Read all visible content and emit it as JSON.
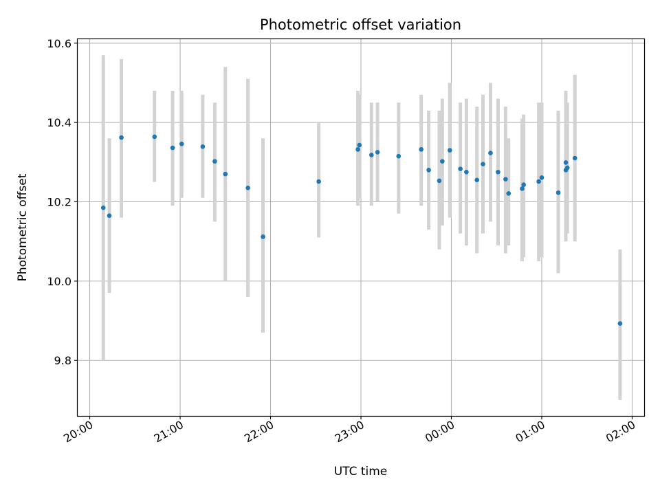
{
  "chart_data": {
    "type": "scatter",
    "title": "Photometric offset variation",
    "xlabel": "UTC time",
    "ylabel": "Photometric offset",
    "x_ticks": [
      "20:00",
      "21:00",
      "22:00",
      "23:00",
      "00:00",
      "01:00",
      "02:00"
    ],
    "y_ticks": [
      "9.8",
      "10.0",
      "10.2",
      "10.4",
      "10.6"
    ],
    "y_tick_values": [
      9.8,
      10.0,
      10.2,
      10.4,
      10.6
    ],
    "xlim": [
      "20:00",
      "02:00"
    ],
    "ylim": [
      9.66,
      10.61
    ],
    "grid": true,
    "colors": {
      "points": "#1f77b4",
      "errorbars": "#d3d3d3",
      "grid": "#b0b0b0"
    },
    "points": [
      {
        "x": "20:09",
        "y": 10.185,
        "lo": 9.8,
        "hi": 10.57
      },
      {
        "x": "20:13",
        "y": 10.165,
        "lo": 9.97,
        "hi": 10.36
      },
      {
        "x": "20:21",
        "y": 10.362,
        "lo": 10.16,
        "hi": 10.56
      },
      {
        "x": "20:43",
        "y": 10.364,
        "lo": 10.25,
        "hi": 10.48
      },
      {
        "x": "20:55",
        "y": 10.336,
        "lo": 10.19,
        "hi": 10.48
      },
      {
        "x": "21:01",
        "y": 10.346,
        "lo": 10.21,
        "hi": 10.48
      },
      {
        "x": "21:15",
        "y": 10.339,
        "lo": 10.21,
        "hi": 10.47
      },
      {
        "x": "21:23",
        "y": 10.302,
        "lo": 10.15,
        "hi": 10.45
      },
      {
        "x": "21:30",
        "y": 10.27,
        "lo": 10.0,
        "hi": 10.54
      },
      {
        "x": "21:45",
        "y": 10.235,
        "lo": 9.96,
        "hi": 10.51
      },
      {
        "x": "21:55",
        "y": 10.112,
        "lo": 9.87,
        "hi": 10.36
      },
      {
        "x": "22:32",
        "y": 10.251,
        "lo": 10.11,
        "hi": 10.4
      },
      {
        "x": "22:58",
        "y": 10.332,
        "lo": 10.19,
        "hi": 10.48
      },
      {
        "x": "22:59",
        "y": 10.343,
        "lo": 10.21,
        "hi": 10.47
      },
      {
        "x": "23:07",
        "y": 10.318,
        "lo": 10.19,
        "hi": 10.45
      },
      {
        "x": "23:11",
        "y": 10.325,
        "lo": 10.2,
        "hi": 10.45
      },
      {
        "x": "23:25",
        "y": 10.315,
        "lo": 10.17,
        "hi": 10.45
      },
      {
        "x": "23:40",
        "y": 10.332,
        "lo": 10.19,
        "hi": 10.47
      },
      {
        "x": "23:45",
        "y": 10.28,
        "lo": 10.13,
        "hi": 10.43
      },
      {
        "x": "23:52",
        "y": 10.253,
        "lo": 10.08,
        "hi": 10.43
      },
      {
        "x": "23:54",
        "y": 10.302,
        "lo": 10.14,
        "hi": 10.46
      },
      {
        "x": "23:59",
        "y": 10.33,
        "lo": 10.16,
        "hi": 10.5
      },
      {
        "x": "00:06",
        "y": 10.283,
        "lo": 10.12,
        "hi": 10.45
      },
      {
        "x": "00:10",
        "y": 10.275,
        "lo": 10.09,
        "hi": 10.46
      },
      {
        "x": "00:17",
        "y": 10.255,
        "lo": 10.07,
        "hi": 10.44
      },
      {
        "x": "00:21",
        "y": 10.295,
        "lo": 10.12,
        "hi": 10.47
      },
      {
        "x": "00:26",
        "y": 10.323,
        "lo": 10.15,
        "hi": 10.5
      },
      {
        "x": "00:31",
        "y": 10.275,
        "lo": 10.09,
        "hi": 10.46
      },
      {
        "x": "00:36",
        "y": 10.257,
        "lo": 10.07,
        "hi": 10.44
      },
      {
        "x": "00:38",
        "y": 10.221,
        "lo": 10.09,
        "hi": 10.36
      },
      {
        "x": "00:47",
        "y": 10.233,
        "lo": 10.05,
        "hi": 10.41
      },
      {
        "x": "00:48",
        "y": 10.243,
        "lo": 10.06,
        "hi": 10.42
      },
      {
        "x": "00:58",
        "y": 10.251,
        "lo": 10.05,
        "hi": 10.45
      },
      {
        "x": "01:00",
        "y": 10.261,
        "lo": 10.06,
        "hi": 10.45
      },
      {
        "x": "01:11",
        "y": 10.223,
        "lo": 10.02,
        "hi": 10.43
      },
      {
        "x": "01:16",
        "y": 10.28,
        "lo": 10.1,
        "hi": 10.45
      },
      {
        "x": "01:16",
        "y": 10.299,
        "lo": 10.12,
        "hi": 10.48
      },
      {
        "x": "01:17",
        "y": 10.286,
        "lo": 10.12,
        "hi": 10.45
      },
      {
        "x": "01:22",
        "y": 10.31,
        "lo": 10.1,
        "hi": 10.52
      },
      {
        "x": "01:52",
        "y": 9.893,
        "lo": 9.7,
        "hi": 10.08
      }
    ]
  }
}
